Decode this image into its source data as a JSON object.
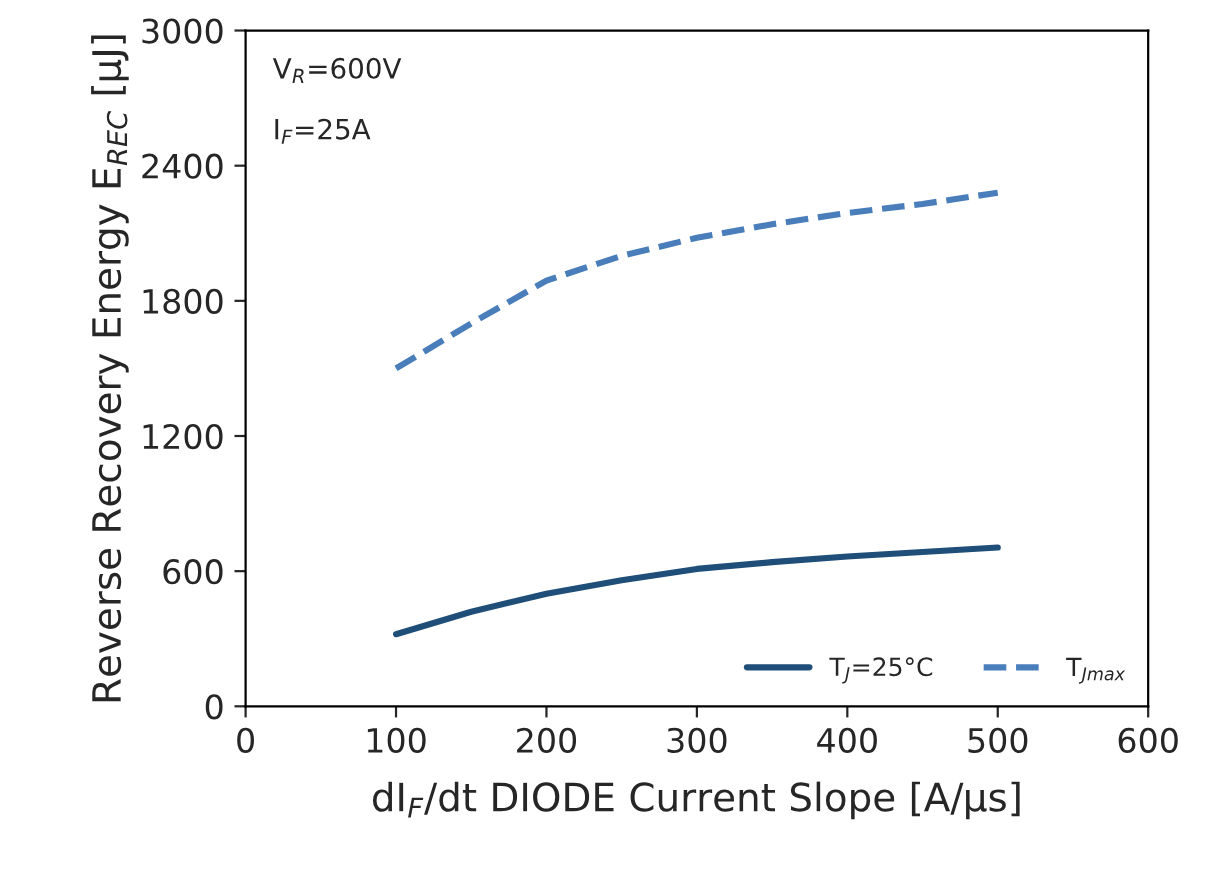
{
  "chart_data": {
    "type": "line",
    "xlabel": "dI$_{F}$/dt DIODE Current Slope [A/µs]",
    "ylabel": "Reverse Recovery Energy E$_{REC}$ [µJ]",
    "x": [
      100,
      150,
      200,
      250,
      300,
      350,
      400,
      450,
      500
    ],
    "series": [
      {
        "name": "T$_{J}$=25°C",
        "color": "#1f4e79",
        "line_style": "solid",
        "values": [
          320,
          420,
          500,
          560,
          610,
          640,
          665,
          685,
          705
        ]
      },
      {
        "name": "T$_{Jmax}$",
        "color": "#4a7ebb",
        "line_style": "dashed",
        "values": [
          1500,
          1700,
          1890,
          2000,
          2080,
          2140,
          2190,
          2230,
          2280
        ]
      }
    ],
    "annotations": [
      "V$_{R}$=600V",
      "I$_{F}$=25A"
    ],
    "xlim": [
      0,
      600
    ],
    "xticks": [
      0,
      100,
      200,
      300,
      400,
      500,
      600
    ],
    "ylim": [
      0,
      3000
    ],
    "yticks": [
      0,
      600,
      1200,
      1800,
      2400,
      3000
    ],
    "grid": false,
    "legend": "bottom right",
    "marker": "none"
  }
}
